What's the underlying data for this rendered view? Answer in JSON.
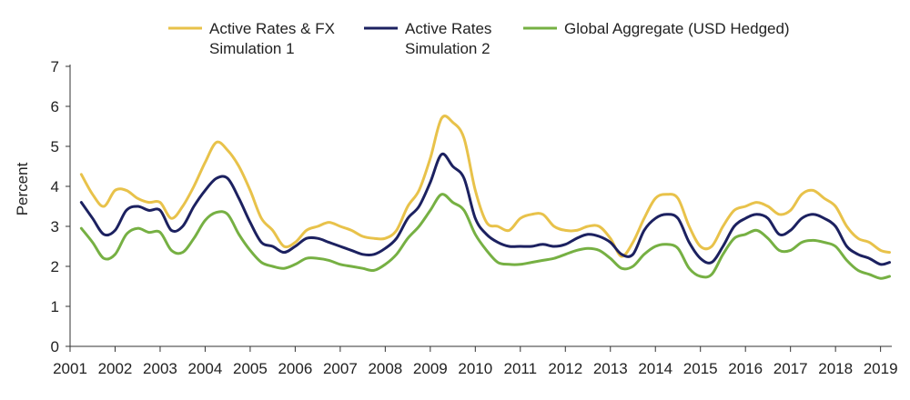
{
  "chart_data": {
    "type": "line",
    "title": "",
    "xlabel": "",
    "ylabel": "Percent",
    "xlim": [
      2001.0,
      2019.25
    ],
    "ylim": [
      0,
      7
    ],
    "y_ticks": [
      "0",
      "1",
      "2",
      "3",
      "4",
      "5",
      "6",
      "7"
    ],
    "x_ticks": [
      "2001",
      "2002",
      "2003",
      "2004",
      "2005",
      "2006",
      "2007",
      "2008",
      "2009",
      "2010",
      "2011",
      "2012",
      "2013",
      "2014",
      "2015",
      "2016",
      "2017",
      "2018",
      "2019"
    ],
    "grid": false,
    "legend_position": "top",
    "x": [
      2001.25,
      2001.5,
      2001.75,
      2002.0,
      2002.25,
      2002.5,
      2002.75,
      2003.0,
      2003.25,
      2003.5,
      2003.75,
      2004.0,
      2004.25,
      2004.5,
      2004.75,
      2005.0,
      2005.25,
      2005.5,
      2005.75,
      2006.0,
      2006.25,
      2006.5,
      2006.75,
      2007.0,
      2007.25,
      2007.5,
      2007.75,
      2008.0,
      2008.25,
      2008.5,
      2008.75,
      2009.0,
      2009.25,
      2009.5,
      2009.75,
      2010.0,
      2010.25,
      2010.5,
      2010.75,
      2011.0,
      2011.25,
      2011.5,
      2011.75,
      2012.0,
      2012.25,
      2012.5,
      2012.75,
      2013.0,
      2013.25,
      2013.5,
      2013.75,
      2014.0,
      2014.25,
      2014.5,
      2014.75,
      2015.0,
      2015.25,
      2015.5,
      2015.75,
      2016.0,
      2016.25,
      2016.5,
      2016.75,
      2017.0,
      2017.25,
      2017.5,
      2017.75,
      2018.0,
      2018.25,
      2018.5,
      2018.75,
      2019.0,
      2019.2
    ],
    "series": [
      {
        "name": "Active Rates & FX Simulation 1",
        "color": "#e8c24a",
        "values": [
          4.3,
          3.8,
          3.5,
          3.9,
          3.9,
          3.7,
          3.6,
          3.6,
          3.2,
          3.5,
          4.0,
          4.6,
          5.1,
          4.9,
          4.5,
          3.9,
          3.2,
          2.9,
          2.5,
          2.6,
          2.9,
          3.0,
          3.1,
          3.0,
          2.9,
          2.75,
          2.7,
          2.7,
          2.9,
          3.5,
          3.9,
          4.7,
          5.7,
          5.6,
          5.2,
          3.9,
          3.1,
          3.0,
          2.9,
          3.2,
          3.3,
          3.3,
          3.0,
          2.9,
          2.9,
          3.0,
          3.0,
          2.7,
          2.25,
          2.6,
          3.2,
          3.7,
          3.8,
          3.7,
          3.0,
          2.5,
          2.5,
          3.0,
          3.4,
          3.5,
          3.6,
          3.5,
          3.3,
          3.4,
          3.8,
          3.9,
          3.7,
          3.5,
          3.0,
          2.7,
          2.6,
          2.4,
          2.35
        ]
      },
      {
        "name": "Active Rates Simulation 2",
        "color": "#1c2160",
        "values": [
          3.6,
          3.2,
          2.8,
          2.9,
          3.4,
          3.5,
          3.4,
          3.4,
          2.9,
          3.0,
          3.5,
          3.9,
          4.2,
          4.2,
          3.7,
          3.1,
          2.6,
          2.5,
          2.35,
          2.5,
          2.7,
          2.7,
          2.6,
          2.5,
          2.4,
          2.3,
          2.3,
          2.45,
          2.7,
          3.2,
          3.5,
          4.1,
          4.8,
          4.5,
          4.2,
          3.2,
          2.8,
          2.6,
          2.5,
          2.5,
          2.5,
          2.55,
          2.5,
          2.55,
          2.7,
          2.8,
          2.75,
          2.6,
          2.3,
          2.3,
          2.9,
          3.2,
          3.3,
          3.2,
          2.6,
          2.2,
          2.1,
          2.5,
          3.0,
          3.2,
          3.3,
          3.2,
          2.8,
          2.9,
          3.2,
          3.3,
          3.2,
          3.0,
          2.5,
          2.3,
          2.2,
          2.05,
          2.1
        ]
      },
      {
        "name": "Global Aggregate (USD Hedged)",
        "color": "#76b043",
        "values": [
          2.95,
          2.6,
          2.2,
          2.3,
          2.8,
          2.95,
          2.85,
          2.85,
          2.4,
          2.35,
          2.7,
          3.15,
          3.35,
          3.3,
          2.8,
          2.4,
          2.1,
          2.0,
          1.95,
          2.05,
          2.2,
          2.2,
          2.15,
          2.05,
          2.0,
          1.95,
          1.9,
          2.05,
          2.3,
          2.7,
          3.0,
          3.4,
          3.8,
          3.6,
          3.4,
          2.8,
          2.4,
          2.1,
          2.05,
          2.05,
          2.1,
          2.15,
          2.2,
          2.3,
          2.4,
          2.45,
          2.4,
          2.2,
          1.95,
          2.0,
          2.3,
          2.5,
          2.55,
          2.45,
          1.95,
          1.75,
          1.8,
          2.3,
          2.7,
          2.8,
          2.9,
          2.7,
          2.4,
          2.4,
          2.6,
          2.65,
          2.6,
          2.5,
          2.15,
          1.9,
          1.8,
          1.7,
          1.75
        ]
      }
    ]
  }
}
